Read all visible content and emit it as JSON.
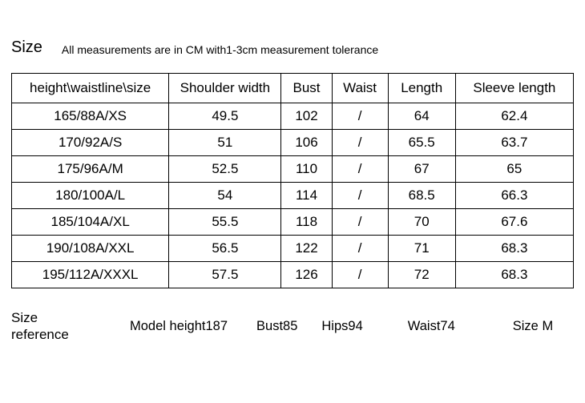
{
  "header": {
    "title": "Size",
    "description": "All measurements are in CM with1-3cm measurement tolerance"
  },
  "table": {
    "columns": [
      "height\\waistline\\size",
      "Shoulder width",
      "Bust",
      "Waist",
      "Length",
      "Sleeve length"
    ],
    "col_widths_pct": [
      28,
      20,
      9,
      10,
      12,
      21
    ],
    "rows": [
      [
        "165/88A/XS",
        "49.5",
        "102",
        "/",
        "64",
        "62.4"
      ],
      [
        "170/92A/S",
        "51",
        "106",
        "/",
        "65.5",
        "63.7"
      ],
      [
        "175/96A/M",
        "52.5",
        "110",
        "/",
        "67",
        "65"
      ],
      [
        "180/100A/L",
        "54",
        "114",
        "/",
        "68.5",
        "66.3"
      ],
      [
        "185/104A/XL",
        "55.5",
        "118",
        "/",
        "70",
        "67.6"
      ],
      [
        "190/108A/XXL",
        "56.5",
        "122",
        "/",
        "71",
        "68.3"
      ],
      [
        "195/112A/XXXL",
        "57.5",
        "126",
        "/",
        "72",
        "68.3"
      ]
    ],
    "border_color": "#000000",
    "background_color": "#ffffff",
    "font_size": 17
  },
  "footer": {
    "label": "Size reference",
    "items": {
      "height": "Model height187",
      "bust": "Bust85",
      "hips": "Hips94",
      "waist": "Waist74",
      "size": "Size M"
    }
  },
  "colors": {
    "text": "#000000",
    "background": "#ffffff",
    "border": "#000000"
  }
}
